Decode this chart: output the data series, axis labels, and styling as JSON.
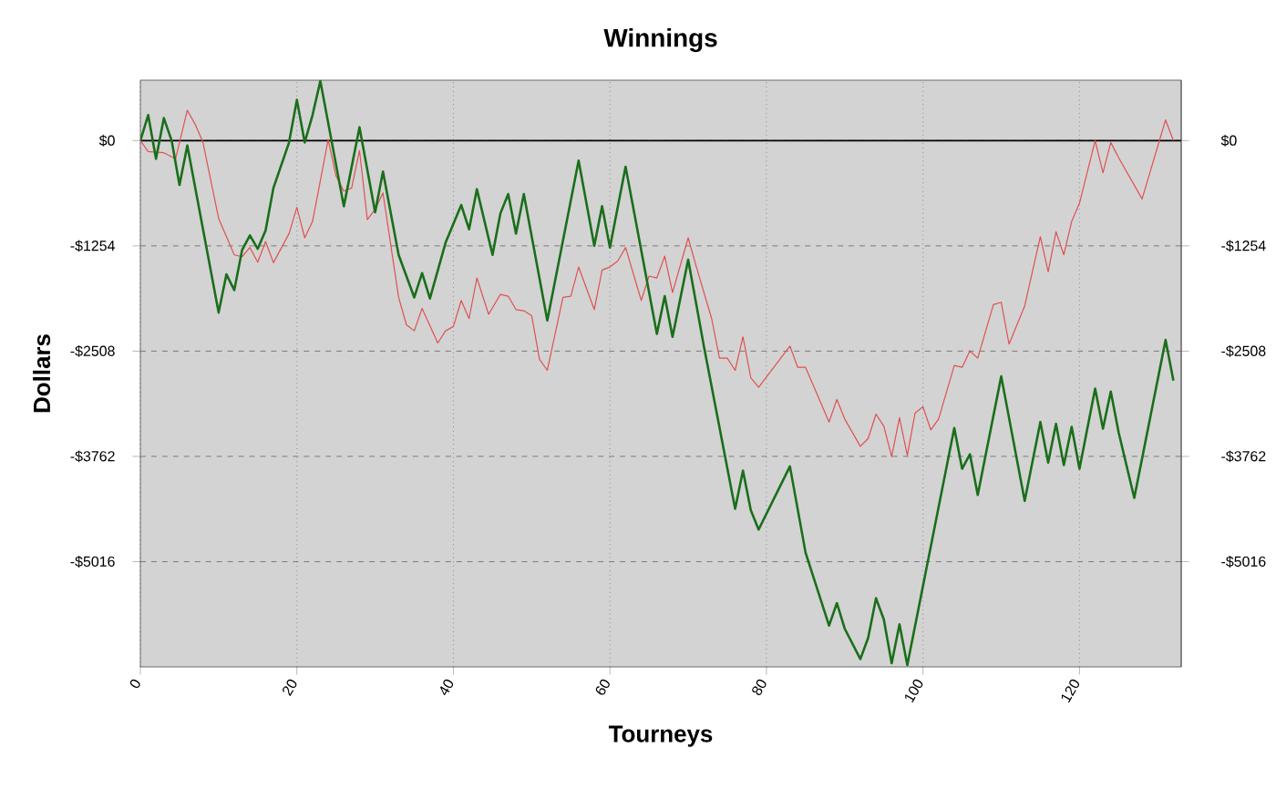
{
  "chart_data": {
    "type": "line",
    "title": "Winnings",
    "xlabel": "Tourneys",
    "ylabel": "Dollars",
    "xlim": [
      0,
      133
    ],
    "ylim": [
      -6270,
      720
    ],
    "xticks": [
      0,
      20,
      40,
      60,
      80,
      100,
      120
    ],
    "yticks": [
      {
        "value": 0,
        "label": "$0"
      },
      {
        "value": -1254,
        "label": "-$1254"
      },
      {
        "value": -2508,
        "label": "-$2508"
      },
      {
        "value": -3762,
        "label": "-$3762"
      },
      {
        "value": -5016,
        "label": "-$5016"
      }
    ],
    "y2lim": [
      -6270,
      720
    ],
    "y2ticks": [
      {
        "value": 0,
        "label": "$0"
      },
      {
        "value": -1254,
        "label": "-$1254"
      },
      {
        "value": -2508,
        "label": "-$2508"
      },
      {
        "value": -3762,
        "label": "-$3762"
      },
      {
        "value": -5016,
        "label": "-$5016"
      }
    ],
    "grid": true,
    "marker": "none",
    "line_style": "solid",
    "ref_lines": [
      {
        "axis": "y",
        "value": 0,
        "color": "#000000"
      }
    ],
    "series": [
      {
        "color": "#e05050",
        "x": [
          0,
          1,
          3,
          4.5,
          6,
          7,
          8,
          10,
          12,
          13,
          14,
          15,
          16,
          17,
          19,
          20,
          21,
          22,
          24,
          25,
          26,
          27,
          28,
          29,
          30,
          31,
          33,
          34,
          35,
          36,
          38,
          39,
          40,
          41,
          42,
          43,
          44.5,
          46,
          47,
          48,
          49,
          50,
          51,
          52,
          54,
          55,
          56,
          58,
          59,
          60,
          61,
          62,
          64,
          65,
          66,
          67,
          68,
          70,
          71,
          73,
          74,
          75,
          76,
          77,
          78,
          79,
          83,
          84,
          85,
          88,
          89,
          90,
          92,
          93,
          94,
          95,
          96,
          97,
          98,
          99,
          100,
          101,
          102,
          104,
          105,
          106,
          107,
          109,
          110,
          111,
          113,
          115,
          116,
          117,
          118,
          119,
          120,
          122,
          123,
          124,
          125,
          128,
          131,
          132
        ],
        "values": [
          0,
          -130,
          -145,
          -217,
          362,
          195,
          -22,
          -927,
          -1361,
          -1383,
          -1274,
          -1448,
          -1202,
          -1455,
          -1108,
          -796,
          -1158,
          -963,
          14,
          -420,
          -601,
          -565,
          -116,
          -941,
          -818,
          -623,
          -1868,
          -2194,
          -2266,
          -1998,
          -2411,
          -2266,
          -2215,
          -1904,
          -2121,
          -1636,
          -2070,
          -1832,
          -1853,
          -2013,
          -2027,
          -2085,
          -2606,
          -2737,
          -1868,
          -1853,
          -1506,
          -2013,
          -1542,
          -1506,
          -1434,
          -1274,
          -1904,
          -1614,
          -1636,
          -1376,
          -1810,
          -1158,
          -1491,
          -2121,
          -2592,
          -2592,
          -2737,
          -2338,
          -2824,
          -2939,
          -2447,
          -2701,
          -2701,
          -3352,
          -3084,
          -3316,
          -3642,
          -3548,
          -3258,
          -3403,
          -3765,
          -3301,
          -3750,
          -3244,
          -3171,
          -3446,
          -3316,
          -2679,
          -2701,
          -2505,
          -2592,
          -1955,
          -1926,
          -2425,
          -1969,
          -1144,
          -1564,
          -1086,
          -1361,
          -963,
          -746,
          0,
          -384,
          -22,
          -203,
          -695,
          246,
          0
        ]
      },
      {
        "color": "#1a6e1a",
        "x": [
          0,
          1,
          2,
          3,
          4,
          5,
          6,
          10,
          11,
          12,
          13,
          14,
          15,
          16,
          17,
          19,
          20,
          21,
          22,
          23,
          26,
          28,
          30,
          31,
          33,
          35,
          36,
          37,
          39,
          41,
          42,
          43,
          45,
          46,
          47,
          48,
          49,
          52,
          56,
          58,
          59,
          60,
          62,
          66,
          67,
          68,
          70,
          72,
          76,
          77,
          78,
          79,
          83,
          85,
          88,
          89,
          90,
          92,
          93,
          94,
          95,
          96,
          97,
          98,
          104,
          105,
          106,
          107,
          110,
          113,
          115,
          116,
          117,
          118,
          119,
          120,
          122,
          123,
          124,
          125,
          127,
          131,
          132
        ],
        "values": [
          0,
          304,
          -217,
          268,
          0,
          -529,
          -58,
          -2049,
          -1593,
          -1781,
          -1303,
          -1129,
          -1289,
          -1071,
          -565,
          -22,
          485,
          -22,
          304,
          710,
          -782,
          159,
          -854,
          -369,
          -1361,
          -1868,
          -1578,
          -1882,
          -1216,
          -767,
          -1057,
          -579,
          -1361,
          -869,
          -637,
          -1108,
          -637,
          -2143,
          -239,
          -1253,
          -782,
          -1274,
          -311,
          -2302,
          -1853,
          -2338,
          -1419,
          -2447,
          -4387,
          -3931,
          -4402,
          -4634,
          -3881,
          -4909,
          -5778,
          -5510,
          -5814,
          -6176,
          -5922,
          -5452,
          -5705,
          -6226,
          -5763,
          -6248,
          -3424,
          -3910,
          -3736,
          -4221,
          -2809,
          -4293,
          -3352,
          -3837,
          -3374,
          -3866,
          -3410,
          -3910,
          -2954,
          -3432,
          -2990,
          -3475,
          -4257,
          -2375,
          -2860
        ]
      }
    ]
  }
}
